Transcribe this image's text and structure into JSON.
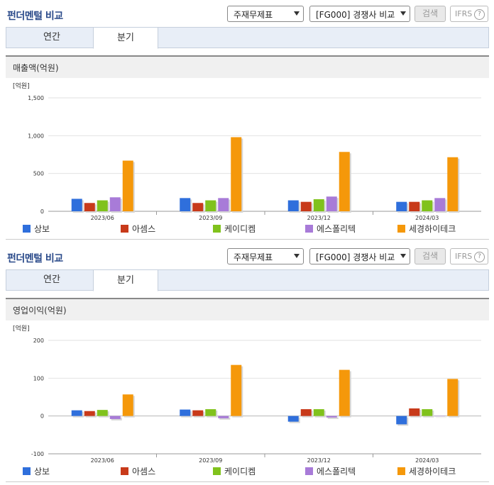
{
  "panels": [
    {
      "title": "펀더멘털 비교",
      "select1": "주재무제표",
      "select2": "[FG000] 경쟁사 비교",
      "search_label": "검색",
      "ifrs_label": "IFRS",
      "tabs": [
        "연간",
        "분기"
      ],
      "active_tab": "분기",
      "chart_title": "매출액(억원)"
    },
    {
      "title": "펀더멘털 비교",
      "select1": "주재무제표",
      "select2": "[FG000] 경쟁사 비교",
      "search_label": "검색",
      "ifrs_label": "IFRS",
      "tabs": [
        "연간",
        "분기"
      ],
      "active_tab": "분기",
      "chart_title": "영업이익(억원)"
    }
  ],
  "colors": {
    "series": [
      "#2f6fdc",
      "#c83a1a",
      "#80c21c",
      "#a87bd8",
      "#f5980a"
    ],
    "title": "#2a4a8a",
    "tab_bg": "#e8eef7"
  },
  "chart_data": [
    {
      "type": "bar",
      "title": "매출액(억원)",
      "unit_label": "[억원]",
      "categories": [
        "2023/06",
        "2023/09",
        "2023/12",
        "2024/03"
      ],
      "ylim": [
        0,
        1500
      ],
      "yticks": [
        0,
        500,
        1000,
        1500
      ],
      "ytick_labels": [
        "0",
        "500",
        "1,000",
        "1,500"
      ],
      "legend_position": "bottom",
      "series": [
        {
          "name": "상보",
          "values": [
            165,
            175,
            145,
            125
          ]
        },
        {
          "name": "아셈스",
          "values": [
            110,
            110,
            125,
            125
          ]
        },
        {
          "name": "케이디켐",
          "values": [
            145,
            145,
            160,
            145
          ]
        },
        {
          "name": "에스폴리텍",
          "values": [
            185,
            175,
            195,
            175
          ]
        },
        {
          "name": "세경하이테크",
          "values": [
            670,
            980,
            785,
            715
          ]
        }
      ]
    },
    {
      "type": "bar",
      "title": "영업이익(억원)",
      "unit_label": "[억원]",
      "categories": [
        "2023/06",
        "2023/09",
        "2023/12",
        "2024/03"
      ],
      "ylim": [
        -100,
        200
      ],
      "yticks": [
        -100,
        0,
        100,
        200
      ],
      "ytick_labels": [
        "-100",
        "0",
        "100",
        "200"
      ],
      "legend_position": "bottom",
      "series": [
        {
          "name": "상보",
          "values": [
            15,
            17,
            -15,
            -22
          ]
        },
        {
          "name": "아셈스",
          "values": [
            13,
            15,
            18,
            20
          ]
        },
        {
          "name": "케이디켐",
          "values": [
            16,
            18,
            18,
            18
          ]
        },
        {
          "name": "에스폴리텍",
          "values": [
            -8,
            -6,
            -4,
            0
          ]
        },
        {
          "name": "세경하이테크",
          "values": [
            57,
            135,
            122,
            98
          ]
        }
      ]
    }
  ]
}
